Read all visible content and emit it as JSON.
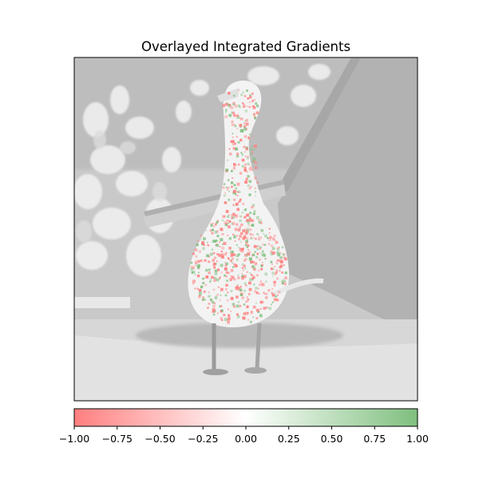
{
  "chart_data": {
    "type": "heatmap",
    "title": "Overlayed Integrated Gradients",
    "image_subject": "grayscale photo of a white goose standing in front of plants and a leaning wooden board, overlaid with red/green attribution speckles",
    "colorbar": {
      "vmin": -1.0,
      "vmax": 1.0,
      "orientation": "horizontal",
      "placement": "below",
      "ticks": [
        -1.0,
        -0.75,
        -0.5,
        -0.25,
        0.0,
        0.25,
        0.5,
        0.75,
        1.0
      ],
      "tick_labels": [
        "−1.00",
        "−0.75",
        "−0.50",
        "−0.25",
        "0.00",
        "0.25",
        "0.50",
        "0.75",
        "1.00"
      ],
      "colors": {
        "negative": "#ff7f7f",
        "zero": "#ffffff",
        "positive": "#7fbf7f"
      }
    },
    "xticks": [],
    "yticks": [],
    "xlabel": "",
    "ylabel": ""
  }
}
